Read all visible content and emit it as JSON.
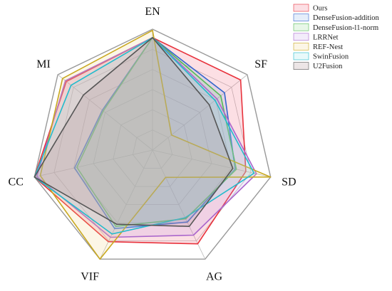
{
  "chart_data": {
    "type": "radar",
    "axes": [
      "EN",
      "SF",
      "SD",
      "AG",
      "VIF",
      "CC",
      "MI"
    ],
    "rmax": 1.0,
    "levels": 6,
    "legend_position": "top-right",
    "series": [
      {
        "name": "Ours",
        "color": "#e8323c",
        "fill": "rgba(240,110,130,0.22)",
        "values": [
          0.93,
          0.93,
          0.79,
          0.86,
          0.84,
          1.0,
          0.91
        ]
      },
      {
        "name": "DenseFusion-addition",
        "color": "#3366cc",
        "fill": "rgba(110,160,230,0.18)",
        "values": [
          0.93,
          0.76,
          0.7,
          0.66,
          0.72,
          0.66,
          0.53
        ]
      },
      {
        "name": "DenseFusion-l1-norm",
        "color": "#55bb55",
        "fill": "rgba(130,210,130,0.18)",
        "values": [
          0.93,
          0.72,
          0.71,
          0.63,
          0.7,
          0.64,
          0.52
        ]
      },
      {
        "name": "LRRNet",
        "color": "#aa66cc",
        "fill": "rgba(190,150,230,0.18)",
        "values": [
          0.93,
          0.68,
          0.88,
          0.78,
          0.8,
          0.98,
          0.92
        ]
      },
      {
        "name": "REF-Nest",
        "color": "#c8a820",
        "fill": "rgba(240,210,130,0.20)",
        "values": [
          0.99,
          0.2,
          1.0,
          0.25,
          1.0,
          0.95,
          0.95
        ]
      },
      {
        "name": "SwinFusion",
        "color": "#22bbcc",
        "fill": "rgba(130,220,225,0.18)",
        "values": [
          0.93,
          0.66,
          0.86,
          0.62,
          0.77,
          1.0,
          0.86
        ]
      },
      {
        "name": "U2Fusion",
        "color": "#555555",
        "fill": "rgba(180,150,155,0.25)",
        "values": [
          0.93,
          0.6,
          0.68,
          0.7,
          0.68,
          1.0,
          0.73
        ]
      }
    ]
  }
}
